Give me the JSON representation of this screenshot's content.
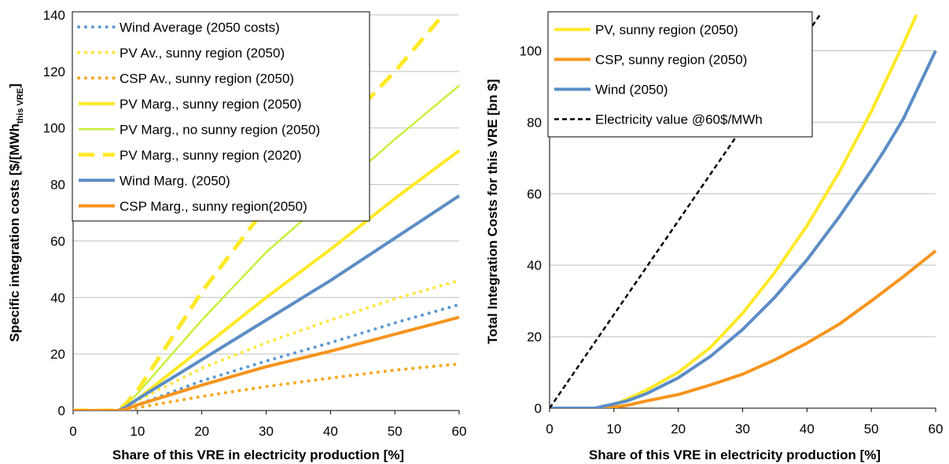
{
  "chart_data": [
    {
      "type": "line",
      "title": "",
      "xlabel": "Share of this VRE in electricity production [%]",
      "ylabel_main": "Specific integration costs [$/[MWh",
      "ylabel_sub": "this VRE",
      "ylabel_end": "]",
      "xlim": [
        0,
        60
      ],
      "ylim": [
        0,
        140
      ],
      "xticks": [
        "0",
        "10",
        "20",
        "30",
        "40",
        "50",
        "60"
      ],
      "yticks": [
        "0",
        "20",
        "40",
        "60",
        "80",
        "100",
        "120",
        "140"
      ],
      "grid": "horizontal",
      "legend_position": "top-left",
      "series": [
        {
          "name": "Wind Average (2050 costs)",
          "color": "#5B9BD5",
          "style": "dotted",
          "width": 4,
          "points": [
            [
              0,
              0
            ],
            [
              7,
              0
            ],
            [
              8,
              0.6
            ],
            [
              10,
              2
            ],
            [
              20,
              10.5
            ],
            [
              30,
              17.5
            ],
            [
              40,
              24
            ],
            [
              50,
              31
            ],
            [
              60,
              37.5
            ]
          ]
        },
        {
          "name": "PV Av., sunny region (2050)",
          "color": "#FFE63C",
          "style": "dotted",
          "width": 4,
          "points": [
            [
              0,
              0
            ],
            [
              7,
              0
            ],
            [
              8,
              1
            ],
            [
              10,
              3.5
            ],
            [
              20,
              15
            ],
            [
              30,
              24
            ],
            [
              40,
              32
            ],
            [
              50,
              39.5
            ],
            [
              60,
              46
            ]
          ]
        },
        {
          "name": "CSP Av., sunny region (2050)",
          "color": "#F7A81B",
          "style": "dotted",
          "width": 4,
          "points": [
            [
              0,
              0
            ],
            [
              7,
              0
            ],
            [
              9,
              0.3
            ],
            [
              10,
              1
            ],
            [
              20,
              5
            ],
            [
              30,
              8.5
            ],
            [
              40,
              11.5
            ],
            [
              50,
              14.3
            ],
            [
              60,
              16.5
            ]
          ]
        },
        {
          "name": "PV Marg., sunny region (2050)",
          "color": "#FFE926",
          "style": "solid",
          "width": 4,
          "points": [
            [
              0,
              0
            ],
            [
              7,
              0
            ],
            [
              8,
              1
            ],
            [
              10,
              4
            ],
            [
              20,
              22
            ],
            [
              30,
              40
            ],
            [
              40,
              57
            ],
            [
              50,
              75
            ],
            [
              60,
              92
            ]
          ]
        },
        {
          "name": "PV Marg., no sunny region (2050)",
          "color": "#C8F03C",
          "style": "solid",
          "width": 2.5,
          "points": [
            [
              0,
              0
            ],
            [
              7,
              0
            ],
            [
              8,
              1.5
            ],
            [
              10,
              6
            ],
            [
              20,
              32
            ],
            [
              30,
              56
            ],
            [
              40,
              76
            ],
            [
              50,
              96
            ],
            [
              60,
              115
            ]
          ]
        },
        {
          "name": "PV Marg., sunny region (2020)",
          "color": "#FFE926",
          "style": "dashed",
          "width": 5,
          "points": [
            [
              0,
              0
            ],
            [
              7,
              0
            ],
            [
              8,
              2
            ],
            [
              10,
              7
            ],
            [
              20,
              42
            ],
            [
              30,
              72
            ],
            [
              40,
              96
            ],
            [
              50,
              120
            ],
            [
              57.5,
              140
            ]
          ]
        },
        {
          "name": "Wind Marg. (2050)",
          "color": "#5B8DC6",
          "style": "solid",
          "width": 4,
          "points": [
            [
              0,
              0
            ],
            [
              7,
              0
            ],
            [
              8,
              1
            ],
            [
              10,
              4
            ],
            [
              20,
              18
            ],
            [
              30,
              32
            ],
            [
              40,
              46
            ],
            [
              50,
              61
            ],
            [
              60,
              76
            ]
          ]
        },
        {
          "name": "CSP Marg., sunny region(2050)",
          "color": "#F7941D",
          "style": "solid",
          "width": 4,
          "points": [
            [
              0,
              0
            ],
            [
              7,
              0
            ],
            [
              8,
              0.3
            ],
            [
              10,
              2
            ],
            [
              20,
              9
            ],
            [
              30,
              15.5
            ],
            [
              40,
              21
            ],
            [
              50,
              27
            ],
            [
              60,
              33
            ]
          ]
        }
      ]
    },
    {
      "type": "line",
      "title": "",
      "xlabel": "Share of this VRE in electricity production [%]",
      "ylabel": "Total Integration Costs for this VRE  [bn $]",
      "xlim": [
        0,
        60
      ],
      "ylim": [
        0,
        110
      ],
      "xticks": [
        "0",
        "10",
        "20",
        "30",
        "40",
        "50",
        "60"
      ],
      "yticks": [
        "0",
        "20",
        "40",
        "60",
        "80",
        "100"
      ],
      "grid": "horizontal",
      "legend_position": "top-left",
      "series": [
        {
          "name": "PV, sunny region (2050)",
          "color": "#FFE926",
          "style": "solid",
          "width": 4,
          "points": [
            [
              0,
              0
            ],
            [
              7,
              0
            ],
            [
              10,
              1
            ],
            [
              12,
              2.5
            ],
            [
              15,
              5
            ],
            [
              20,
              10
            ],
            [
              25,
              17
            ],
            [
              30,
              26.5
            ],
            [
              35,
              38
            ],
            [
              40,
              51
            ],
            [
              45,
              66
            ],
            [
              50,
              83
            ],
            [
              55,
              102
            ],
            [
              57,
              110
            ]
          ]
        },
        {
          "name": "CSP, sunny region (2050)",
          "color": "#F7941D",
          "style": "solid",
          "width": 4,
          "points": [
            [
              0,
              0
            ],
            [
              9,
              0
            ],
            [
              12,
              0.8
            ],
            [
              15,
              2
            ],
            [
              20,
              3.8
            ],
            [
              25,
              6.5
            ],
            [
              30,
              9.5
            ],
            [
              35,
              13.5
            ],
            [
              40,
              18.2
            ],
            [
              45,
              23.5
            ],
            [
              50,
              30
            ],
            [
              55,
              36.8
            ],
            [
              60,
              44
            ]
          ]
        },
        {
          "name": "Wind (2050)",
          "color": "#5B8DC6",
          "style": "solid",
          "width": 4,
          "points": [
            [
              0,
              0
            ],
            [
              7,
              0
            ],
            [
              9,
              0.8
            ],
            [
              12,
              2
            ],
            [
              15,
              4
            ],
            [
              20,
              8.5
            ],
            [
              25,
              14.5
            ],
            [
              30,
              22
            ],
            [
              35,
              31
            ],
            [
              40,
              41.5
            ],
            [
              45,
              53.5
            ],
            [
              50,
              66.5
            ],
            [
              52,
              72
            ],
            [
              55,
              81
            ],
            [
              60,
              100
            ]
          ]
        },
        {
          "name": "Electricity value @60$/MWh",
          "color": "#000000",
          "style": "shortdash",
          "width": 2.5,
          "points": [
            [
              0,
              0
            ],
            [
              42,
              110
            ]
          ]
        }
      ]
    }
  ]
}
